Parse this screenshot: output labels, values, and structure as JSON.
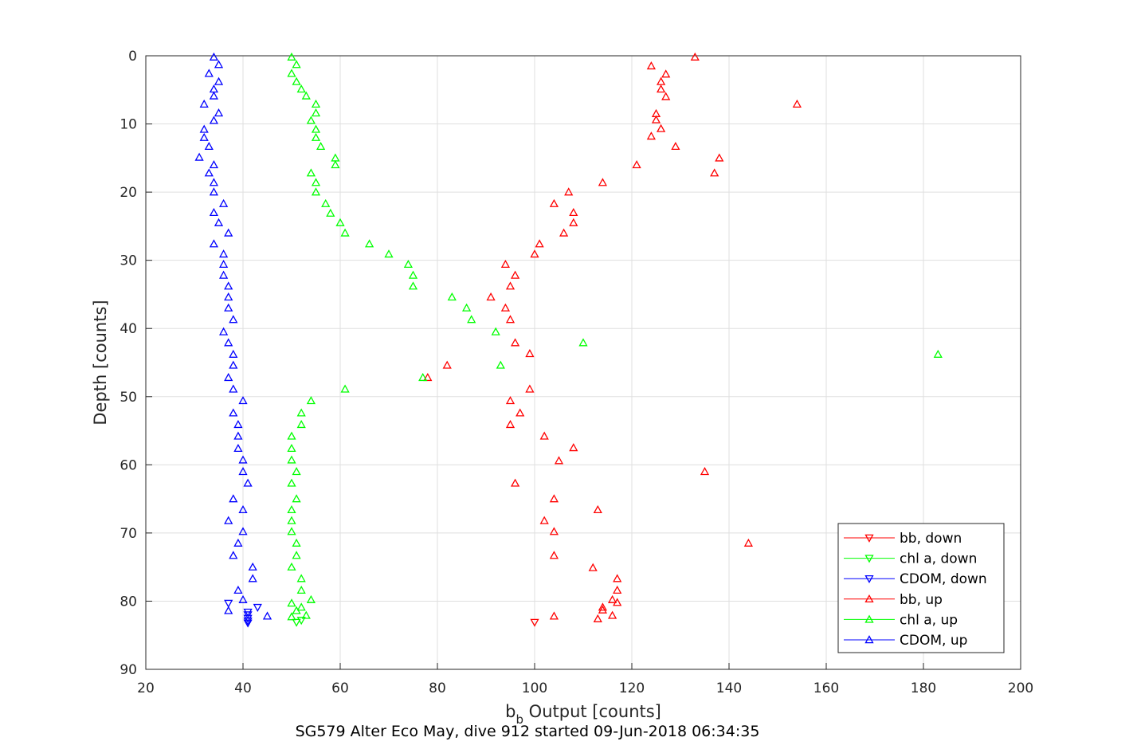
{
  "chart_data": {
    "type": "scatter",
    "xlabel_main": "b",
    "xlabel_sub": "b",
    "xlabel_rest": " Output [counts]",
    "ylabel": "Depth [counts]",
    "caption": "SG579 Alter Eco May, dive 912 started 09-Jun-2018 06:34:35",
    "xlim": [
      20,
      200
    ],
    "ylim": [
      0,
      90
    ],
    "y_reversed": true,
    "grid": true,
    "xticks": [
      "20",
      "40",
      "60",
      "80",
      "100",
      "120",
      "140",
      "160",
      "180",
      "200"
    ],
    "yticks": [
      "0",
      "10",
      "20",
      "30",
      "40",
      "50",
      "60",
      "70",
      "80",
      "90"
    ],
    "legend_position": "bottom-right",
    "series": [
      {
        "name": "bb, down",
        "color": "#ff0000",
        "marker": "triangle-down",
        "points": [
          [
            100,
            83.1
          ]
        ]
      },
      {
        "name": "chl a, down",
        "color": "#00ff00",
        "marker": "triangle-down",
        "points": [
          [
            51,
            83.1
          ],
          [
            52,
            82.8
          ]
        ]
      },
      {
        "name": "CDOM, down",
        "color": "#0000ff",
        "marker": "triangle-down",
        "points": [
          [
            41,
            83.2
          ],
          [
            41,
            82.9
          ],
          [
            41,
            82.5
          ],
          [
            41,
            82.0
          ],
          [
            41,
            81.6
          ],
          [
            37,
            80.3
          ],
          [
            43,
            80.9
          ]
        ]
      },
      {
        "name": "bb, up",
        "color": "#ff0000",
        "marker": "triangle-up",
        "points": [
          [
            133,
            0.2
          ],
          [
            124,
            1.5
          ],
          [
            127,
            2.7
          ],
          [
            126,
            3.8
          ],
          [
            126,
            4.9
          ],
          [
            127,
            6.0
          ],
          [
            154,
            7.1
          ],
          [
            125,
            8.5
          ],
          [
            125,
            9.4
          ],
          [
            126,
            10.7
          ],
          [
            124,
            11.8
          ],
          [
            129,
            13.3
          ],
          [
            138,
            15.0
          ],
          [
            121,
            16.0
          ],
          [
            137,
            17.2
          ],
          [
            114,
            18.6
          ],
          [
            107,
            20.0
          ],
          [
            104,
            21.7
          ],
          [
            108,
            23.0
          ],
          [
            108,
            24.5
          ],
          [
            106,
            26.0
          ],
          [
            101,
            27.6
          ],
          [
            100,
            29.1
          ],
          [
            94,
            30.6
          ],
          [
            96,
            32.2
          ],
          [
            95,
            33.8
          ],
          [
            91,
            35.4
          ],
          [
            94,
            37.0
          ],
          [
            95,
            38.7
          ],
          [
            96,
            42.1
          ],
          [
            99,
            43.7
          ],
          [
            82,
            45.4
          ],
          [
            78,
            47.2
          ],
          [
            99,
            48.9
          ],
          [
            95,
            50.6
          ],
          [
            97,
            52.4
          ],
          [
            95,
            54.1
          ],
          [
            102,
            55.8
          ],
          [
            108,
            57.5
          ],
          [
            105,
            59.4
          ],
          [
            135,
            61.0
          ],
          [
            96,
            62.7
          ],
          [
            104,
            65.0
          ],
          [
            113,
            66.6
          ],
          [
            102,
            68.2
          ],
          [
            104,
            69.8
          ],
          [
            144,
            71.5
          ],
          [
            104,
            73.3
          ],
          [
            112,
            75.1
          ],
          [
            117,
            76.7
          ],
          [
            117,
            78.4
          ],
          [
            116,
            79.8
          ],
          [
            117,
            80.2
          ],
          [
            114,
            80.9
          ],
          [
            114,
            81.3
          ],
          [
            116,
            82.1
          ],
          [
            104,
            82.2
          ],
          [
            113,
            82.6
          ]
        ]
      },
      {
        "name": "chl a, up",
        "color": "#00ff00",
        "marker": "triangle-up",
        "points": [
          [
            50,
            0.2
          ],
          [
            51,
            1.3
          ],
          [
            50,
            2.6
          ],
          [
            51,
            3.8
          ],
          [
            52,
            4.9
          ],
          [
            53,
            5.9
          ],
          [
            55,
            7.1
          ],
          [
            55,
            8.4
          ],
          [
            54,
            9.5
          ],
          [
            55,
            10.8
          ],
          [
            55,
            12.0
          ],
          [
            56,
            13.3
          ],
          [
            59,
            15.0
          ],
          [
            59,
            16.0
          ],
          [
            54,
            17.2
          ],
          [
            55,
            18.6
          ],
          [
            55,
            20.0
          ],
          [
            57,
            21.7
          ],
          [
            58,
            23.1
          ],
          [
            60,
            24.5
          ],
          [
            61,
            26.0
          ],
          [
            66,
            27.6
          ],
          [
            70,
            29.1
          ],
          [
            74,
            30.6
          ],
          [
            75,
            32.2
          ],
          [
            75,
            33.8
          ],
          [
            83,
            35.4
          ],
          [
            86,
            37.0
          ],
          [
            87,
            38.7
          ],
          [
            92,
            40.5
          ],
          [
            110,
            42.1
          ],
          [
            183,
            43.8
          ],
          [
            93,
            45.4
          ],
          [
            77,
            47.2
          ],
          [
            61,
            48.9
          ],
          [
            54,
            50.6
          ],
          [
            52,
            52.4
          ],
          [
            52,
            54.1
          ],
          [
            50,
            55.8
          ],
          [
            50,
            57.6
          ],
          [
            50,
            59.3
          ],
          [
            51,
            61.0
          ],
          [
            50,
            62.7
          ],
          [
            51,
            65.0
          ],
          [
            50,
            66.6
          ],
          [
            50,
            68.2
          ],
          [
            50,
            69.8
          ],
          [
            51,
            71.5
          ],
          [
            51,
            73.3
          ],
          [
            50,
            75.0
          ],
          [
            52,
            76.7
          ],
          [
            52,
            78.4
          ],
          [
            54,
            79.8
          ],
          [
            50,
            80.3
          ],
          [
            52,
            80.9
          ],
          [
            51,
            81.4
          ],
          [
            53,
            82.1
          ],
          [
            50,
            82.3
          ]
        ]
      },
      {
        "name": "CDOM, up",
        "color": "#0000ff",
        "marker": "triangle-up",
        "points": [
          [
            34,
            0.2
          ],
          [
            35,
            1.3
          ],
          [
            33,
            2.6
          ],
          [
            35,
            3.8
          ],
          [
            34,
            4.9
          ],
          [
            34,
            5.9
          ],
          [
            32,
            7.1
          ],
          [
            35,
            8.4
          ],
          [
            34,
            9.5
          ],
          [
            32,
            10.8
          ],
          [
            32,
            12.0
          ],
          [
            33,
            13.3
          ],
          [
            31,
            14.9
          ],
          [
            34,
            16.0
          ],
          [
            33,
            17.2
          ],
          [
            34,
            18.6
          ],
          [
            34,
            20.0
          ],
          [
            36,
            21.7
          ],
          [
            34,
            23.0
          ],
          [
            35,
            24.5
          ],
          [
            37,
            26.0
          ],
          [
            34,
            27.6
          ],
          [
            36,
            29.1
          ],
          [
            36,
            30.6
          ],
          [
            36,
            32.2
          ],
          [
            37,
            33.8
          ],
          [
            37,
            35.4
          ],
          [
            37,
            37.0
          ],
          [
            38,
            38.7
          ],
          [
            36,
            40.5
          ],
          [
            37,
            42.1
          ],
          [
            38,
            43.8
          ],
          [
            38,
            45.4
          ],
          [
            37,
            47.2
          ],
          [
            38,
            48.9
          ],
          [
            40,
            50.6
          ],
          [
            38,
            52.4
          ],
          [
            39,
            54.1
          ],
          [
            39,
            55.8
          ],
          [
            39,
            57.6
          ],
          [
            40,
            59.3
          ],
          [
            40,
            61.0
          ],
          [
            41,
            62.7
          ],
          [
            38,
            65.0
          ],
          [
            40,
            66.6
          ],
          [
            37,
            68.2
          ],
          [
            40,
            69.8
          ],
          [
            39,
            71.5
          ],
          [
            38,
            73.3
          ],
          [
            42,
            75.0
          ],
          [
            42,
            76.7
          ],
          [
            39,
            78.4
          ],
          [
            40,
            79.8
          ],
          [
            37,
            81.4
          ],
          [
            45,
            82.2
          ]
        ]
      }
    ]
  }
}
